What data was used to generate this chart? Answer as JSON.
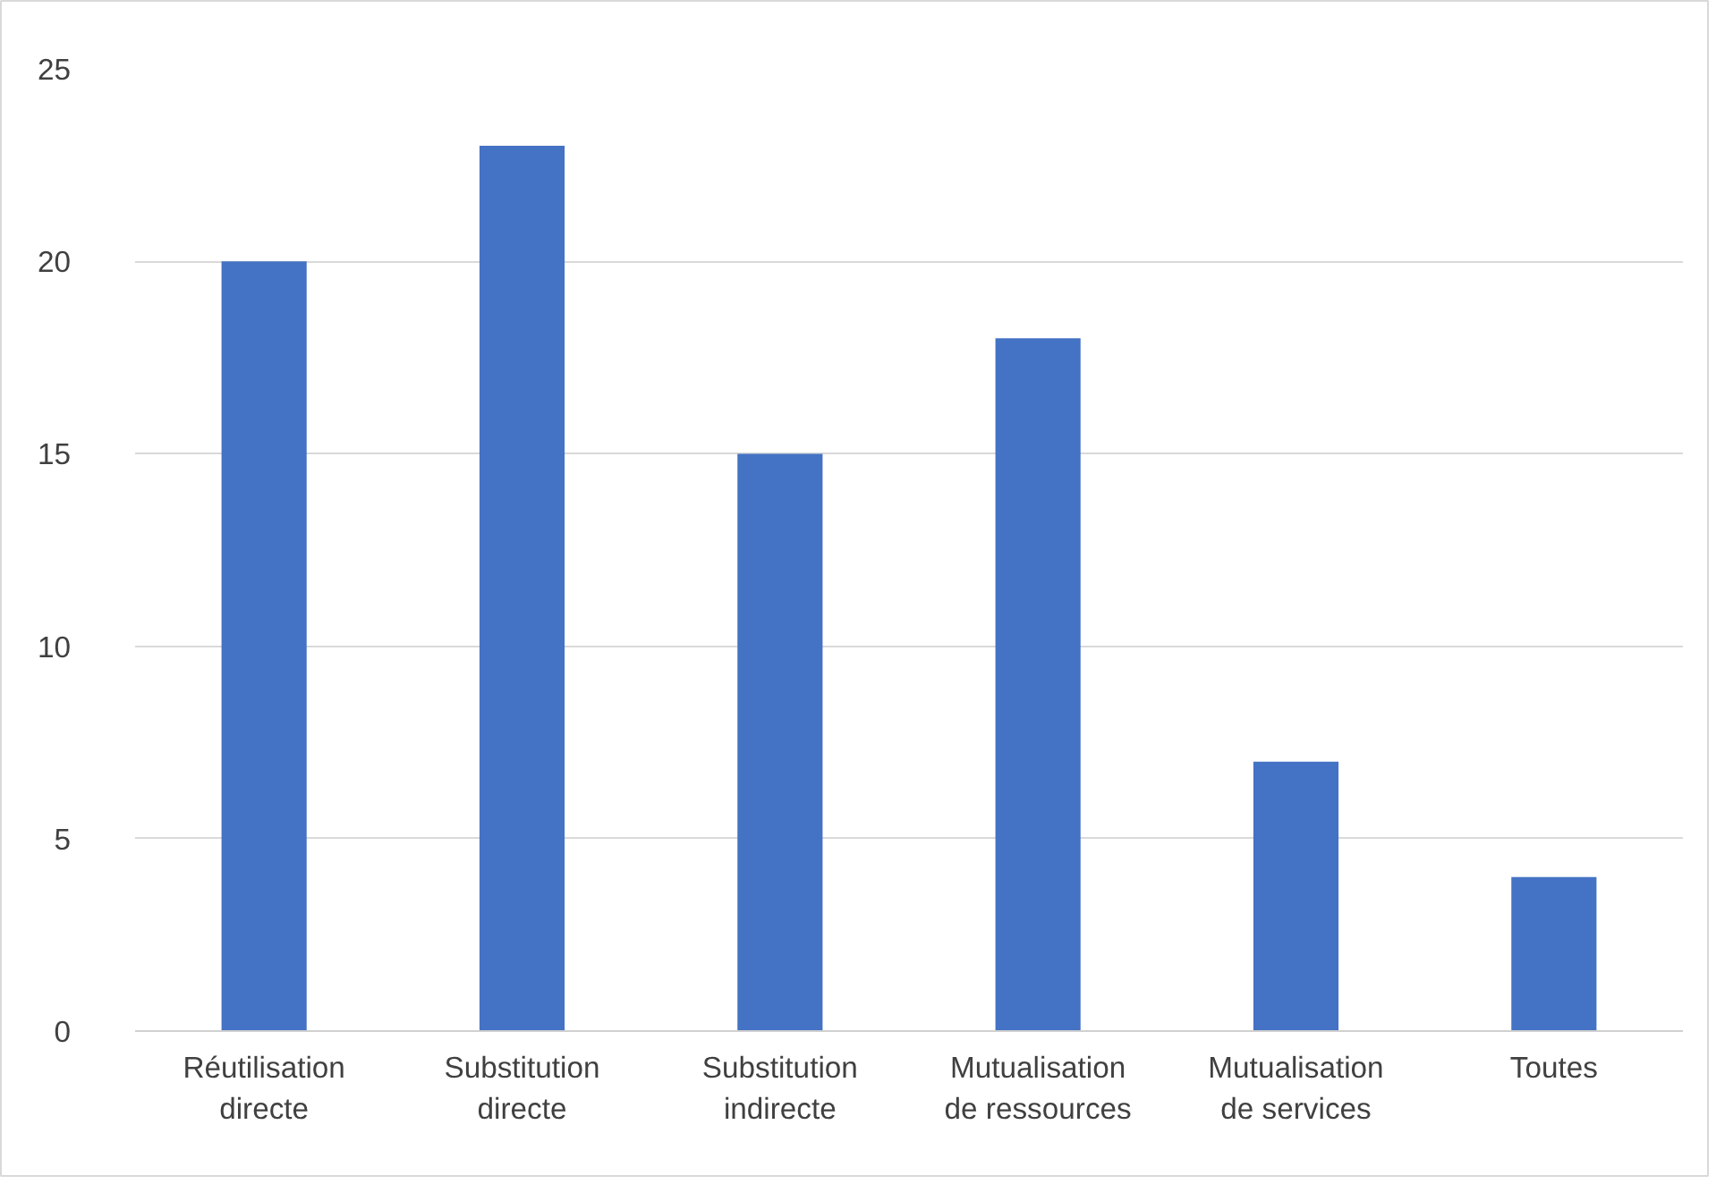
{
  "chart_data": {
    "type": "bar",
    "categories": [
      "Réutilisation directe",
      "Substitution directe",
      "Substitution indirecte",
      "Mutualisation de ressources",
      "Mutualisation de services",
      "Toutes"
    ],
    "values": [
      20,
      23,
      15,
      18,
      7,
      4
    ],
    "color": "#4472c4",
    "ylim": [
      0,
      25
    ],
    "yticks": [
      0,
      5,
      10,
      15,
      20,
      25
    ],
    "grid": "y"
  }
}
